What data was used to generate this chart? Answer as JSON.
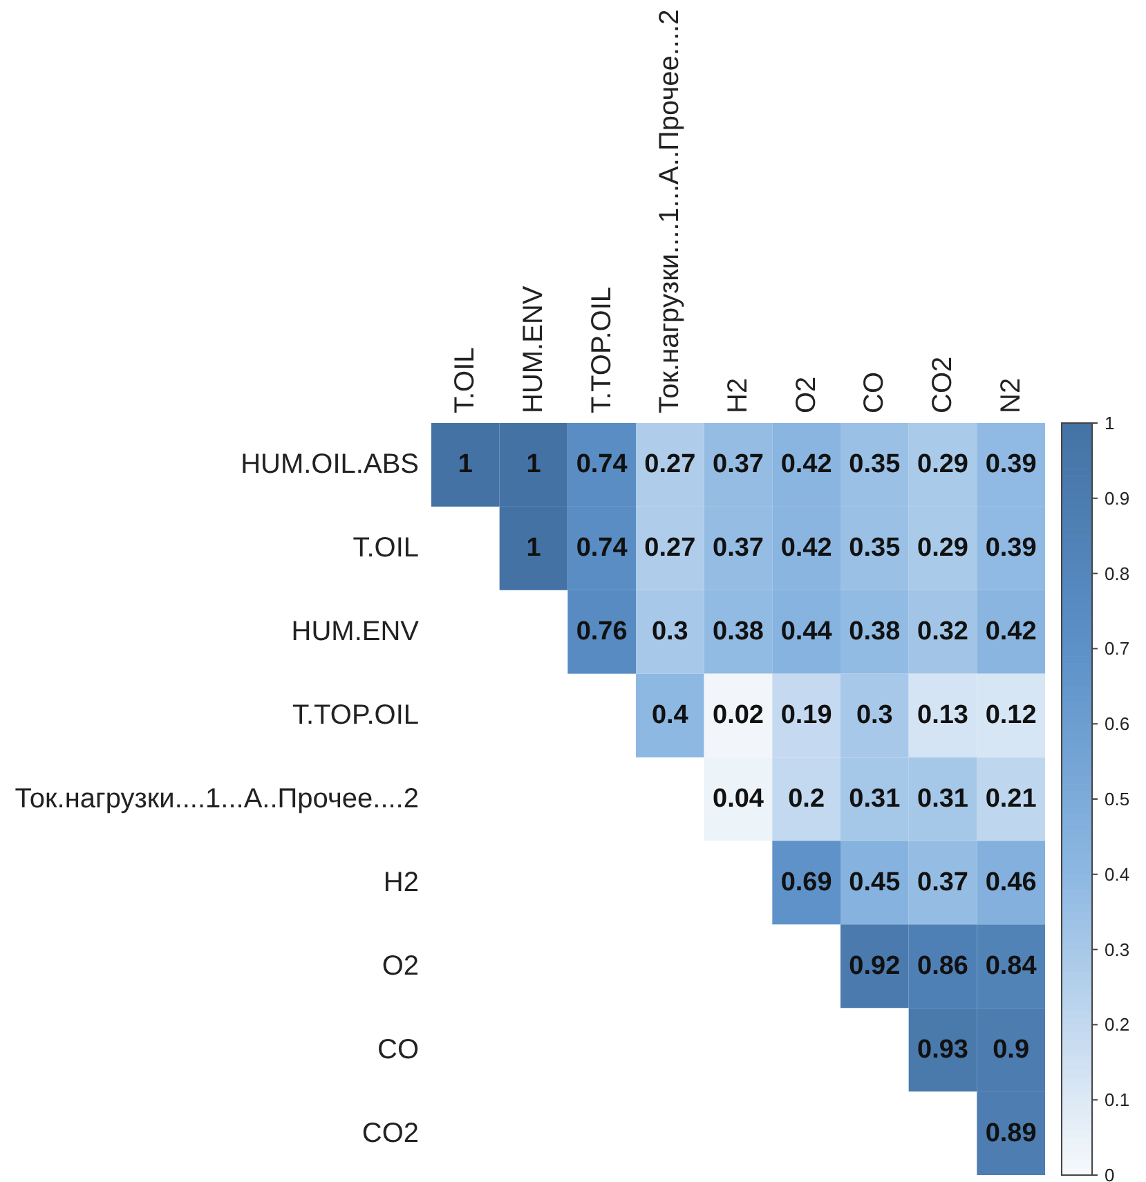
{
  "chart_data": {
    "type": "heatmap",
    "categories": [
      "T.OIL",
      "HUM.ENV",
      "T.TOP.OIL",
      "Ток.нагрузки....1...А..Прочее....2",
      "H2",
      "O2",
      "CO",
      "CO2",
      "N2"
    ],
    "y_categories": [
      "HUM.OIL.ABS",
      "T.OIL",
      "HUM.ENV",
      "T.TOP.OIL",
      "Ток.нагрузки....1...А..Прочее....2",
      "H2",
      "O2",
      "CO",
      "CO2"
    ],
    "cells": [
      [
        1,
        1,
        0.74,
        0.27,
        0.37,
        0.42,
        0.35,
        0.29,
        0.39
      ],
      [
        null,
        1,
        0.74,
        0.27,
        0.37,
        0.42,
        0.35,
        0.29,
        0.39
      ],
      [
        null,
        null,
        0.76,
        0.3,
        0.38,
        0.44,
        0.38,
        0.32,
        0.42
      ],
      [
        null,
        null,
        null,
        0.4,
        0.02,
        0.19,
        0.3,
        0.13,
        0.12
      ],
      [
        null,
        null,
        null,
        null,
        0.04,
        0.2,
        0.31,
        0.31,
        0.21
      ],
      [
        null,
        null,
        null,
        null,
        null,
        0.69,
        0.45,
        0.37,
        0.46
      ],
      [
        null,
        null,
        null,
        null,
        null,
        null,
        0.92,
        0.86,
        0.84
      ],
      [
        null,
        null,
        null,
        null,
        null,
        null,
        null,
        0.93,
        0.9
      ],
      [
        null,
        null,
        null,
        null,
        null,
        null,
        null,
        null,
        0.89
      ]
    ],
    "clim": [
      0,
      1
    ],
    "cticks": [
      0,
      0.1,
      0.2,
      0.3,
      0.4,
      0.5,
      0.6,
      0.7,
      0.8,
      0.9,
      1
    ],
    "data_labels": true
  }
}
